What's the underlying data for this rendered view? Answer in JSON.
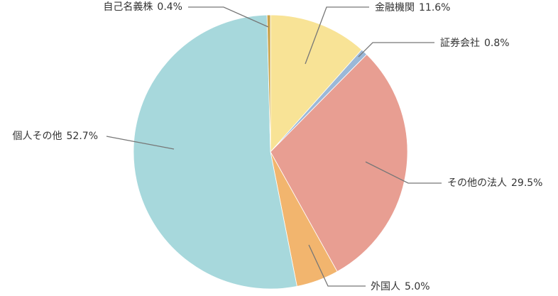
{
  "chart_data": {
    "type": "pie",
    "categories": [
      "金融機関",
      "証券会社",
      "その他の法人",
      "外国人",
      "個人その他",
      "自己名義株"
    ],
    "values": [
      11.6,
      0.8,
      29.5,
      5.0,
      52.7,
      0.4
    ],
    "value_labels": [
      "11.6%",
      "0.8%",
      "29.5%",
      "5.0%",
      "52.7%",
      "0.4%"
    ],
    "colors": [
      "#f8e396",
      "#9bb8d8",
      "#e89e92",
      "#f2b56e",
      "#a7d8dc",
      "#c9a24a"
    ]
  }
}
